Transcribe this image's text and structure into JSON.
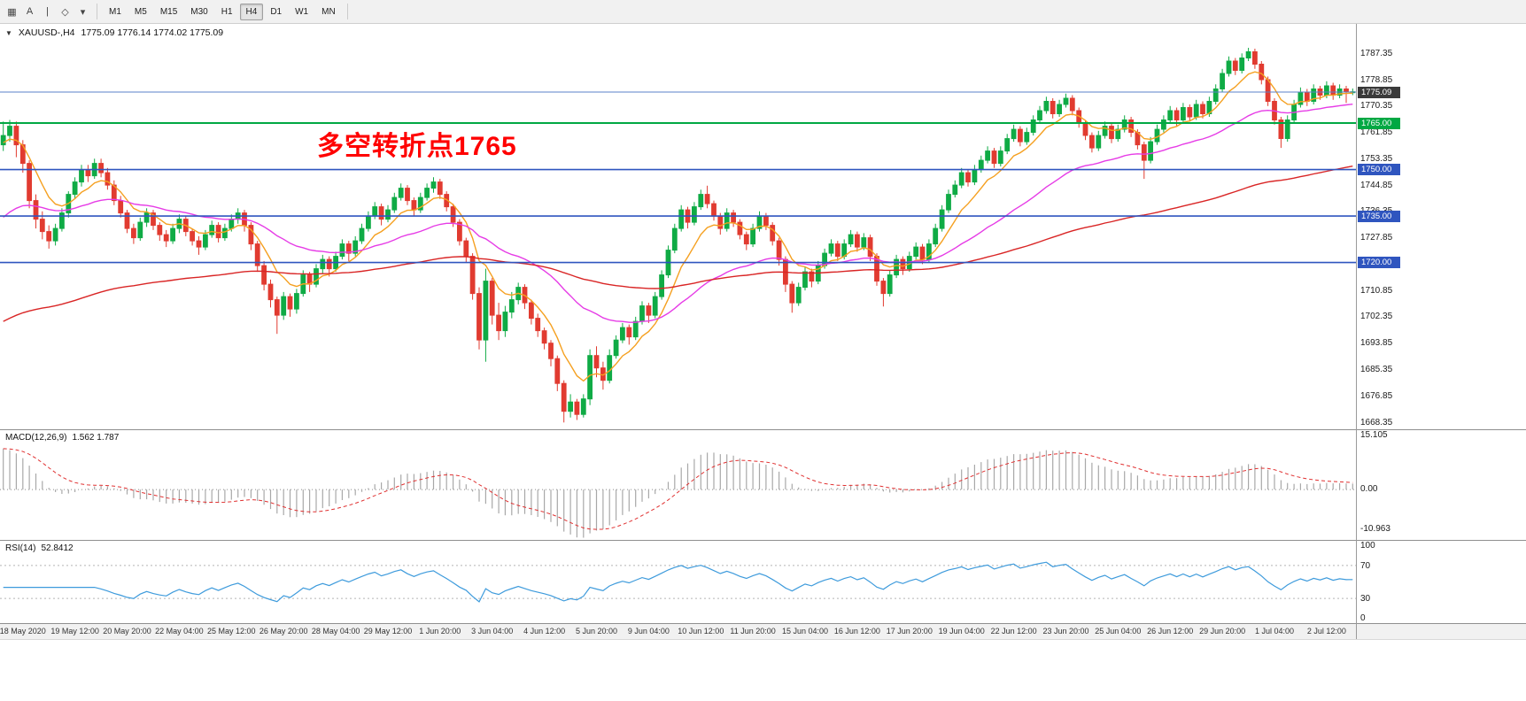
{
  "toolbar": {
    "tools": [
      {
        "name": "new-chart-icon",
        "glyph": "▦"
      },
      {
        "name": "text-label-tool-icon",
        "glyph": "A"
      },
      {
        "name": "vertical-line-tool-icon",
        "glyph": "|"
      },
      {
        "name": "drawing-tools-icon",
        "glyph": "◇"
      },
      {
        "name": "dropdown-arrow-icon",
        "glyph": "▾"
      }
    ],
    "timeframes": [
      "M1",
      "M5",
      "M15",
      "M30",
      "H1",
      "H4",
      "D1",
      "W1",
      "MN"
    ],
    "selected_timeframe": "H4"
  },
  "chart": {
    "symbol_label": "XAUUSD-,H4",
    "ohlc_label": "1775.09 1776.14 1774.02 1775.09",
    "annotation": {
      "text": "多空转折点1765",
      "color": "#ff0000"
    },
    "price_axis_ticks": [
      1787.35,
      1778.85,
      1770.35,
      1761.85,
      1753.35,
      1744.85,
      1736.35,
      1727.85,
      1719.35,
      1710.85,
      1702.35,
      1693.85,
      1685.35,
      1676.85,
      1668.35
    ],
    "levels": [
      {
        "price": 1775.0,
        "label": "1775.09",
        "line_color": "#5b82c8",
        "line_width": 1,
        "tag_bg": "#3a3a3a"
      },
      {
        "price": 1765.0,
        "label": "1765.00",
        "line_color": "#00a843",
        "line_width": 2,
        "tag_bg": "#00a843"
      },
      {
        "price": 1750.0,
        "label": "1750.00",
        "line_color": "#2f55bf",
        "line_width": 1.6,
        "tag_bg": "#2f55bf"
      },
      {
        "price": 1735.0,
        "label": "1735.00",
        "line_color": "#2f55bf",
        "line_width": 1.6,
        "tag_bg": "#2f55bf"
      },
      {
        "price": 1720.0,
        "label": "1720.00",
        "line_color": "#2f55bf",
        "line_width": 1.6,
        "tag_bg": "#2f55bf"
      }
    ],
    "colors": {
      "bull": "#0fab45",
      "bear": "#e13b30",
      "background": "#ffffff"
    },
    "moving_averages": [
      {
        "name": "ma-fast",
        "period": 8,
        "color": "#f5a020",
        "seed": 1758
      },
      {
        "name": "ma-mid",
        "period": 34,
        "color": "#e63ce6",
        "seed": 1733
      },
      {
        "name": "ma-slow",
        "period": 120,
        "color": "#d92525",
        "seed": 1700
      }
    ]
  },
  "chart_data": {
    "type": "candlestick",
    "title": "XAUUSD-,H4",
    "symbol": "XAUUSD",
    "timeframe": "H4",
    "grid": "off",
    "ylim": [
      1666.2,
      1797.0
    ],
    "x_labels": [
      "18 May 2020",
      "19 May 12:00",
      "20 May 20:00",
      "22 May 04:00",
      "25 May 12:00",
      "26 May 20:00",
      "28 May 04:00",
      "29 May 12:00",
      "1 Jun 20:00",
      "3 Jun 04:00",
      "4 Jun 12:00",
      "5 Jun 20:00",
      "9 Jun 04:00",
      "10 Jun 12:00",
      "11 Jun 20:00",
      "15 Jun 04:00",
      "16 Jun 12:00",
      "17 Jun 20:00",
      "19 Jun 04:00",
      "22 Jun 12:00",
      "23 Jun 20:00",
      "25 Jun 04:00",
      "26 Jun 12:00",
      "29 Jun 20:00",
      "1 Jul 04:00",
      "2 Jul 12:00"
    ],
    "x_label_first_index": 3,
    "x_label_step": 8,
    "candles": [
      [
        1758,
        1765.5,
        1756,
        1761
      ],
      [
        1761,
        1766,
        1759,
        1764
      ],
      [
        1764,
        1765.5,
        1754,
        1758
      ],
      [
        1758,
        1759.5,
        1749,
        1752
      ],
      [
        1752,
        1753,
        1737.5,
        1740
      ],
      [
        1740,
        1742,
        1731,
        1734
      ],
      [
        1734,
        1736.5,
        1727.5,
        1730
      ],
      [
        1730,
        1732,
        1724.5,
        1727
      ],
      [
        1727,
        1732.5,
        1725.5,
        1731
      ],
      [
        1731,
        1737.5,
        1730,
        1736
      ],
      [
        1736,
        1743,
        1734.5,
        1742
      ],
      [
        1742,
        1747.5,
        1740.5,
        1746
      ],
      [
        1746,
        1751.5,
        1744.5,
        1750
      ],
      [
        1750,
        1751.5,
        1746,
        1748
      ],
      [
        1748,
        1753.5,
        1747,
        1752
      ],
      [
        1752,
        1753.5,
        1747.5,
        1749
      ],
      [
        1749,
        1750.5,
        1743.5,
        1745
      ],
      [
        1745,
        1746.5,
        1738.5,
        1740
      ],
      [
        1740,
        1741.5,
        1734.5,
        1736
      ],
      [
        1736,
        1737,
        1729.5,
        1731
      ],
      [
        1731,
        1732.5,
        1726,
        1728
      ],
      [
        1728,
        1734.5,
        1727,
        1733
      ],
      [
        1733,
        1737.5,
        1731.5,
        1736
      ],
      [
        1736,
        1737,
        1730.5,
        1732
      ],
      [
        1732,
        1733,
        1727,
        1729
      ],
      [
        1729,
        1730.5,
        1725,
        1727
      ],
      [
        1727,
        1732.5,
        1726,
        1731
      ],
      [
        1731,
        1735.5,
        1729.5,
        1734
      ],
      [
        1734,
        1735,
        1728.5,
        1730
      ],
      [
        1730,
        1731,
        1725.5,
        1727
      ],
      [
        1727,
        1728.5,
        1722.5,
        1725
      ],
      [
        1725,
        1730.5,
        1724,
        1729
      ],
      [
        1729,
        1733.5,
        1728,
        1732
      ],
      [
        1732,
        1733,
        1726.5,
        1728
      ],
      [
        1728,
        1732.5,
        1727,
        1731
      ],
      [
        1731,
        1735.5,
        1730,
        1734
      ],
      [
        1734,
        1737.5,
        1732.5,
        1736
      ],
      [
        1736,
        1737,
        1730,
        1732
      ],
      [
        1732,
        1733,
        1724,
        1726
      ],
      [
        1726,
        1727,
        1717,
        1719
      ],
      [
        1719,
        1720.5,
        1711,
        1713
      ],
      [
        1713,
        1714.5,
        1705.5,
        1708
      ],
      [
        1708,
        1709,
        1697,
        1703
      ],
      [
        1703,
        1710.5,
        1701.5,
        1709
      ],
      [
        1709,
        1710,
        1702.5,
        1705
      ],
      [
        1705,
        1711.5,
        1703.5,
        1710
      ],
      [
        1710,
        1717.5,
        1709,
        1716
      ],
      [
        1716,
        1717,
        1710.5,
        1713
      ],
      [
        1713,
        1719.5,
        1712,
        1718
      ],
      [
        1718,
        1722.5,
        1716.5,
        1721
      ],
      [
        1721,
        1722,
        1715.5,
        1718
      ],
      [
        1718,
        1723.5,
        1717,
        1722
      ],
      [
        1722,
        1727.5,
        1721,
        1726
      ],
      [
        1726,
        1727,
        1720.5,
        1723
      ],
      [
        1723,
        1728.5,
        1722,
        1727
      ],
      [
        1727,
        1732.5,
        1726,
        1731
      ],
      [
        1731,
        1736.5,
        1730,
        1735
      ],
      [
        1735,
        1739.5,
        1734,
        1738
      ],
      [
        1738,
        1739,
        1732,
        1734
      ],
      [
        1734,
        1738.5,
        1733,
        1737
      ],
      [
        1737,
        1742.5,
        1736,
        1741
      ],
      [
        1741,
        1745.5,
        1740,
        1744
      ],
      [
        1744,
        1745,
        1738.5,
        1740
      ],
      [
        1740,
        1741,
        1735,
        1737
      ],
      [
        1737,
        1742.5,
        1736,
        1741
      ],
      [
        1741,
        1745.5,
        1740,
        1744
      ],
      [
        1744,
        1747.5,
        1742.5,
        1746
      ],
      [
        1746,
        1747,
        1740.5,
        1742
      ],
      [
        1742,
        1743,
        1736.5,
        1738
      ],
      [
        1738,
        1739,
        1731.5,
        1733
      ],
      [
        1733,
        1734,
        1725.5,
        1727
      ],
      [
        1727,
        1728,
        1720,
        1722
      ],
      [
        1722,
        1723,
        1708,
        1710
      ],
      [
        1710,
        1712,
        1692,
        1695
      ],
      [
        1695,
        1718,
        1688,
        1714
      ],
      [
        1714,
        1715,
        1700,
        1703
      ],
      [
        1703,
        1707,
        1695,
        1698
      ],
      [
        1698,
        1706,
        1696,
        1704
      ],
      [
        1704,
        1710.5,
        1702,
        1708
      ],
      [
        1708,
        1713.5,
        1706.5,
        1712
      ],
      [
        1712,
        1713,
        1705,
        1707
      ],
      [
        1707,
        1708,
        1700,
        1702
      ],
      [
        1702,
        1703.5,
        1696,
        1698
      ],
      [
        1698,
        1699,
        1692,
        1694
      ],
      [
        1694,
        1695,
        1686.5,
        1689
      ],
      [
        1689,
        1690,
        1678.5,
        1681
      ],
      [
        1681,
        1682,
        1668.4,
        1672
      ],
      [
        1672,
        1677.5,
        1670,
        1675
      ],
      [
        1675,
        1676,
        1669.2,
        1671
      ],
      [
        1671,
        1677.5,
        1670,
        1676
      ],
      [
        1676,
        1692,
        1674,
        1690
      ],
      [
        1690,
        1693,
        1683,
        1686
      ],
      [
        1686,
        1688,
        1679,
        1682
      ],
      [
        1682,
        1692,
        1681,
        1690
      ],
      [
        1690,
        1696.5,
        1689,
        1695
      ],
      [
        1695,
        1700.5,
        1694,
        1699
      ],
      [
        1699,
        1700,
        1693.5,
        1696
      ],
      [
        1696,
        1702.5,
        1695,
        1701
      ],
      [
        1701,
        1707.5,
        1700,
        1706
      ],
      [
        1706,
        1707,
        1700.5,
        1703
      ],
      [
        1703,
        1710.5,
        1702,
        1709
      ],
      [
        1709,
        1717.5,
        1708,
        1716
      ],
      [
        1716,
        1725.5,
        1715,
        1724
      ],
      [
        1724,
        1732.5,
        1723,
        1731
      ],
      [
        1731,
        1738.5,
        1730,
        1737
      ],
      [
        1737,
        1738,
        1731,
        1733
      ],
      [
        1733,
        1739.5,
        1732,
        1738
      ],
      [
        1738,
        1743.5,
        1737,
        1742
      ],
      [
        1742,
        1744.8,
        1737.5,
        1739
      ],
      [
        1739,
        1740,
        1733.5,
        1735
      ],
      [
        1735,
        1736,
        1729,
        1731
      ],
      [
        1731,
        1737.5,
        1730,
        1736
      ],
      [
        1736,
        1737,
        1731.5,
        1733
      ],
      [
        1733,
        1734,
        1727.5,
        1729
      ],
      [
        1729,
        1730,
        1724,
        1726
      ],
      [
        1726,
        1732.5,
        1725,
        1731
      ],
      [
        1731,
        1736.5,
        1730,
        1735
      ],
      [
        1735,
        1736,
        1730.5,
        1732
      ],
      [
        1732,
        1733,
        1725.5,
        1727
      ],
      [
        1727,
        1728,
        1719,
        1721
      ],
      [
        1721,
        1722,
        1710.5,
        1713
      ],
      [
        1713,
        1714,
        1703.8,
        1707
      ],
      [
        1707,
        1713.5,
        1706,
        1712
      ],
      [
        1712,
        1718.5,
        1711,
        1717
      ],
      [
        1717,
        1718,
        1712,
        1714
      ],
      [
        1714,
        1720.5,
        1713,
        1719
      ],
      [
        1719,
        1724.5,
        1718,
        1723
      ],
      [
        1723,
        1727.5,
        1722,
        1726
      ],
      [
        1726,
        1727,
        1720.5,
        1722
      ],
      [
        1722,
        1727.5,
        1721,
        1726
      ],
      [
        1726,
        1730.5,
        1725,
        1729
      ],
      [
        1729,
        1730,
        1723.5,
        1725
      ],
      [
        1725,
        1729.5,
        1724,
        1728
      ],
      [
        1728,
        1729,
        1720.5,
        1722
      ],
      [
        1722,
        1723,
        1712.5,
        1714
      ],
      [
        1714,
        1715,
        1705.8,
        1710
      ],
      [
        1710,
        1717.5,
        1709,
        1716
      ],
      [
        1716,
        1722.5,
        1715,
        1721
      ],
      [
        1721,
        1722,
        1716,
        1718
      ],
      [
        1718,
        1723.5,
        1717,
        1722
      ],
      [
        1722,
        1726.5,
        1721,
        1725
      ],
      [
        1725,
        1726,
        1719.5,
        1721
      ],
      [
        1721,
        1727.5,
        1720,
        1726
      ],
      [
        1726,
        1732.5,
        1725,
        1731
      ],
      [
        1731,
        1738.5,
        1730,
        1737
      ],
      [
        1737,
        1743.5,
        1736,
        1742
      ],
      [
        1742,
        1746.5,
        1741,
        1745
      ],
      [
        1745,
        1750.5,
        1744,
        1749
      ],
      [
        1749,
        1750,
        1744.5,
        1746
      ],
      [
        1746,
        1751.5,
        1745,
        1750
      ],
      [
        1750,
        1754.5,
        1749,
        1753
      ],
      [
        1753,
        1757.5,
        1752,
        1756
      ],
      [
        1756,
        1757,
        1750.5,
        1752
      ],
      [
        1752,
        1757.5,
        1751,
        1756
      ],
      [
        1756,
        1761.5,
        1755,
        1760
      ],
      [
        1760,
        1764.5,
        1759,
        1763
      ],
      [
        1763,
        1764,
        1757.5,
        1759
      ],
      [
        1759,
        1763.5,
        1758,
        1762
      ],
      [
        1762,
        1767.5,
        1761,
        1766
      ],
      [
        1766,
        1770.5,
        1765,
        1769
      ],
      [
        1769,
        1773.5,
        1768,
        1772
      ],
      [
        1772,
        1773,
        1766.5,
        1768
      ],
      [
        1768,
        1772.5,
        1767,
        1771
      ],
      [
        1771,
        1774.5,
        1770,
        1773
      ],
      [
        1773,
        1774,
        1767.5,
        1769
      ],
      [
        1769,
        1770,
        1763.5,
        1765
      ],
      [
        1765,
        1766,
        1759.5,
        1761
      ],
      [
        1761,
        1762,
        1755.5,
        1757
      ],
      [
        1757,
        1762.5,
        1756,
        1761
      ],
      [
        1761,
        1765.5,
        1760,
        1764
      ],
      [
        1764,
        1765,
        1758.5,
        1760
      ],
      [
        1760,
        1764.5,
        1759,
        1763
      ],
      [
        1763,
        1767.5,
        1762,
        1766
      ],
      [
        1766,
        1767,
        1760.5,
        1762
      ],
      [
        1762,
        1763,
        1756.5,
        1758
      ],
      [
        1758,
        1759,
        1747,
        1753
      ],
      [
        1753,
        1760.5,
        1752,
        1759
      ],
      [
        1759,
        1764.5,
        1758,
        1763
      ],
      [
        1763,
        1767.5,
        1762,
        1766
      ],
      [
        1766,
        1770.5,
        1765,
        1769
      ],
      [
        1769,
        1770,
        1764,
        1766
      ],
      [
        1766,
        1771.5,
        1765,
        1770
      ],
      [
        1770,
        1771,
        1765.5,
        1767
      ],
      [
        1767,
        1772.5,
        1766,
        1771
      ],
      [
        1771,
        1772,
        1766.5,
        1768
      ],
      [
        1768,
        1773.5,
        1767,
        1772
      ],
      [
        1772,
        1777.5,
        1771,
        1776
      ],
      [
        1776,
        1782.5,
        1775,
        1781
      ],
      [
        1781,
        1786.5,
        1780,
        1785
      ],
      [
        1785,
        1786,
        1780.5,
        1782
      ],
      [
        1782,
        1787.5,
        1781,
        1786
      ],
      [
        1786,
        1789.3,
        1785,
        1788
      ],
      [
        1788,
        1789,
        1782.5,
        1784
      ],
      [
        1784,
        1785,
        1777.5,
        1779
      ],
      [
        1779,
        1780,
        1770.5,
        1772
      ],
      [
        1772,
        1773,
        1764.5,
        1766
      ],
      [
        1766,
        1767,
        1757,
        1760
      ],
      [
        1760,
        1767.5,
        1759,
        1766
      ],
      [
        1766,
        1772.5,
        1765,
        1771
      ],
      [
        1771,
        1776.5,
        1770,
        1775
      ],
      [
        1775,
        1776,
        1770.5,
        1772
      ],
      [
        1772,
        1777.5,
        1771,
        1776
      ],
      [
        1776,
        1777,
        1772.5,
        1774
      ],
      [
        1774,
        1778.5,
        1773,
        1777
      ],
      [
        1777,
        1778,
        1772.5,
        1774
      ],
      [
        1774,
        1777.5,
        1773,
        1776
      ],
      [
        1776,
        1777,
        1771.5,
        1775
      ],
      [
        1775,
        1776.14,
        1774.02,
        1775.09
      ]
    ]
  },
  "macd": {
    "label": "MACD(12,26,9)",
    "values_label": "1.562 1.787",
    "params": {
      "fast": 12,
      "slow": 26,
      "signal": 9
    },
    "seeds": {
      "fast": 1758,
      "slow": 1746
    },
    "ylim": [
      -14,
      16.5
    ],
    "axis_ticks": [
      {
        "v": 15.105,
        "label": "15.105"
      },
      {
        "v": 0,
        "label": "0.00"
      },
      {
        "v": -10.963,
        "label": "-10.963"
      }
    ],
    "hist_color": "#a8a8a8",
    "signal_color": "#e03030"
  },
  "rsi": {
    "label": "RSI(14)",
    "value_label": "52.8412",
    "period": 14,
    "color": "#3e9bdc",
    "overbought": 70,
    "oversold": 30,
    "axis_ticks": [
      {
        "v": 100,
        "label": "100"
      },
      {
        "v": 70,
        "label": "70"
      },
      {
        "v": 30,
        "label": "30"
      },
      {
        "v": 0,
        "label": "0"
      }
    ]
  }
}
